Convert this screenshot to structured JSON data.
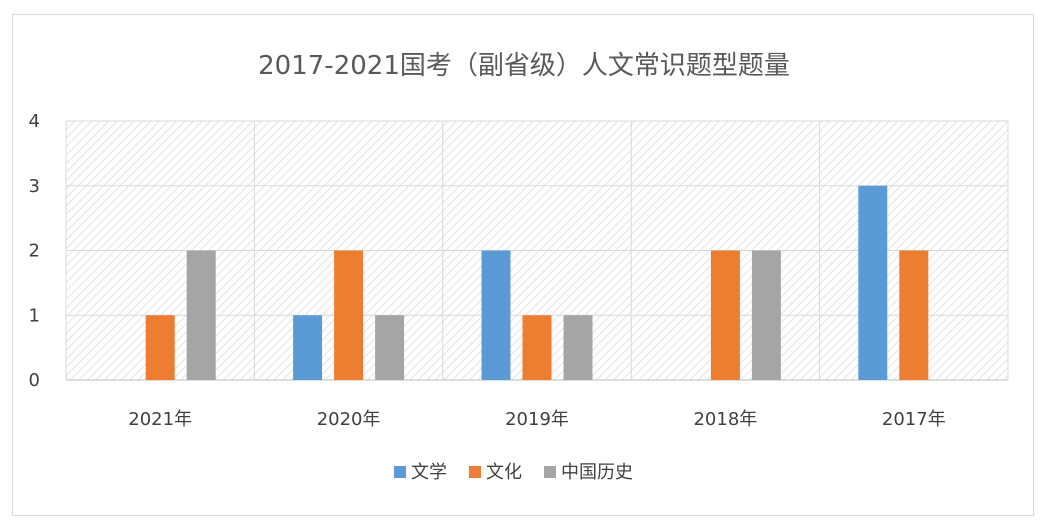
{
  "chart_data": {
    "type": "bar",
    "title": "2017-2021国考（副省级）人文常识题型题量",
    "categories": [
      "2021年",
      "2020年",
      "2019年",
      "2018年",
      "2017年"
    ],
    "series": [
      {
        "name": "文学",
        "color": "#5b9bd5",
        "values": [
          0,
          1,
          2,
          0,
          3
        ]
      },
      {
        "name": "文化",
        "color": "#ed7d31",
        "values": [
          1,
          2,
          1,
          2,
          2
        ]
      },
      {
        "name": "中国历史",
        "color": "#a5a5a5",
        "values": [
          2,
          1,
          1,
          2,
          0
        ]
      }
    ],
    "ylim": [
      0,
      4
    ],
    "yticks": [
      0,
      1,
      2,
      3,
      4
    ],
    "grid": true,
    "legend_position": "bottom"
  }
}
